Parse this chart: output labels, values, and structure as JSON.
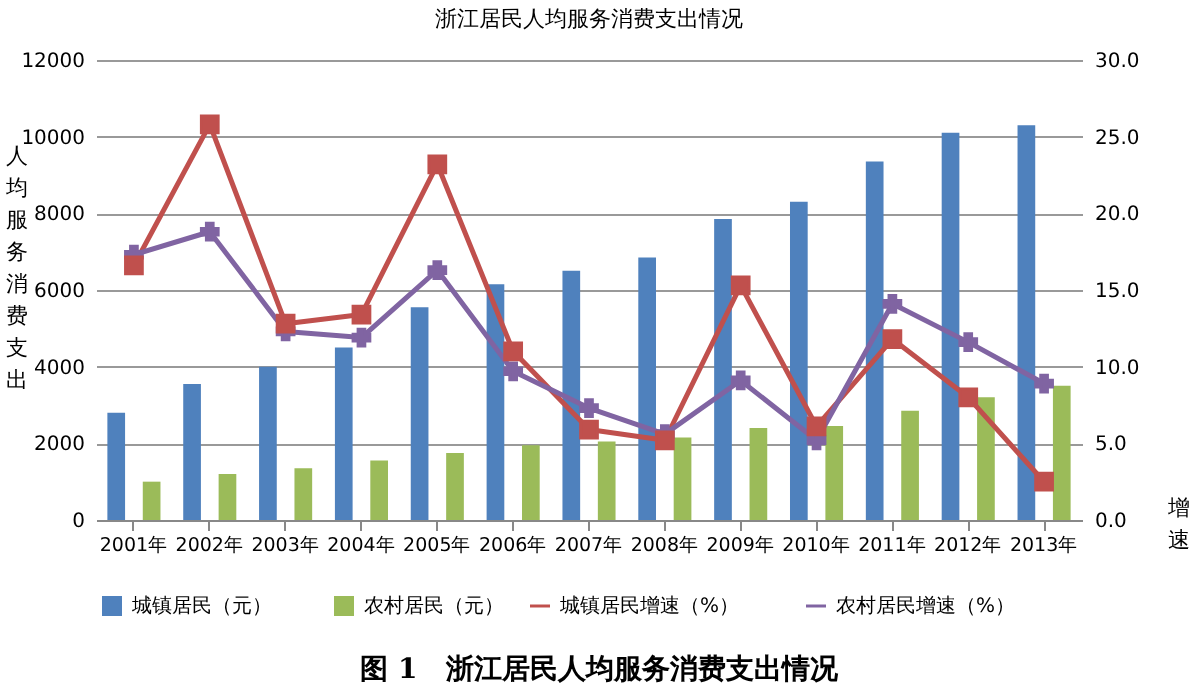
{
  "chart_data": {
    "type": "bar",
    "title": "浙江居民人均服务消费支出情况",
    "ylabel": "人均服务消费支出",
    "y2label": "增速",
    "categories": [
      "2001年",
      "2002年",
      "2003年",
      "2004年",
      "2005年",
      "2006年",
      "2007年",
      "2008年",
      "2009年",
      "2010年",
      "2011年",
      "2012年",
      "2013年"
    ],
    "series": [
      {
        "name": "城镇居民（元）",
        "color": "#4f81bd",
        "values": [
          2800,
          3550,
          4000,
          4500,
          5550,
          6150,
          6500,
          6850,
          7850,
          8300,
          9350,
          10100,
          10300
        ]
      },
      {
        "name": "农村居民（元）",
        "color": "#9bbb59",
        "values": [
          1000,
          1200,
          1350,
          1550,
          1750,
          1950,
          2050,
          2150,
          2400,
          2450,
          2850,
          3200,
          3500
        ]
      },
      {
        "name": "城镇居民增速（%）",
        "type": "line",
        "axis": "y2",
        "marker": "square",
        "color": "#c0504d",
        "values": [
          16.6,
          25.8,
          12.8,
          13.4,
          23.2,
          11.0,
          5.9,
          5.2,
          15.3,
          6.1,
          11.8,
          8.0,
          2.5
        ]
      },
      {
        "name": "农村居民增速（%）",
        "type": "line",
        "axis": "y2",
        "marker": "cross",
        "color": "#8064a2",
        "values": [
          17.3,
          18.8,
          12.3,
          11.9,
          16.3,
          9.7,
          7.3,
          5.6,
          9.1,
          5.2,
          14.1,
          11.6,
          8.9
        ]
      }
    ],
    "ylim": [
      0,
      12000
    ],
    "yticks": [
      0,
      2000,
      4000,
      6000,
      8000,
      10000,
      12000
    ],
    "y2lim": [
      0,
      30
    ],
    "y2ticks": [
      {
        "value": 0,
        "label": "0.0"
      },
      {
        "value": 5,
        "label": "5.0"
      },
      {
        "value": 10,
        "label": "10.0"
      },
      {
        "value": 15,
        "label": "15.0"
      },
      {
        "value": 20,
        "label": "20.0"
      },
      {
        "value": 25,
        "label": "25.0"
      },
      {
        "value": 30,
        "label": "30.0"
      }
    ],
    "grid": "y",
    "legend": "bottom",
    "annotations": [
      "图 1　浙江居民人均服务消费支出情况"
    ]
  }
}
